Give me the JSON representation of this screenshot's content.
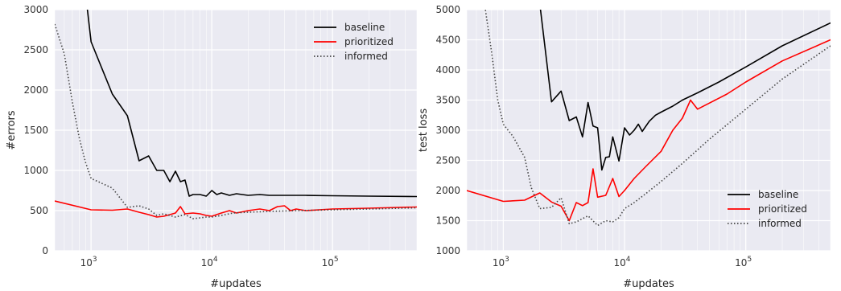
{
  "chart_data": [
    {
      "type": "line",
      "title": "",
      "xlabel": "#updates",
      "ylabel": "#errors",
      "xscale": "log",
      "xlim": [
        500,
        500000
      ],
      "ylim": [
        0,
        3000
      ],
      "xticks": [
        1000,
        10000,
        100000
      ],
      "xtick_labels": [
        {
          "base": "10",
          "exp": "3"
        },
        {
          "base": "10",
          "exp": "4"
        },
        {
          "base": "10",
          "exp": "5"
        }
      ],
      "yticks": [
        0,
        500,
        1000,
        1500,
        2000,
        2500,
        3000
      ],
      "ytick_labels": [
        "0",
        "500",
        "1000",
        "1500",
        "2000",
        "2500",
        "3000"
      ],
      "grid": true,
      "legend_position": "top-right",
      "series": [
        {
          "name": "baseline",
          "color": "#000000",
          "style": "solid",
          "points": [
            [
              900,
              3200
            ],
            [
              1000,
              2600
            ],
            [
              1500,
              1950
            ],
            [
              2000,
              1680
            ],
            [
              2500,
              1120
            ],
            [
              3000,
              1180
            ],
            [
              3500,
              1000
            ],
            [
              4000,
              1000
            ],
            [
              4500,
              860
            ],
            [
              5000,
              990
            ],
            [
              5500,
              860
            ],
            [
              6000,
              880
            ],
            [
              6500,
              680
            ],
            [
              7000,
              700
            ],
            [
              8000,
              700
            ],
            [
              9000,
              680
            ],
            [
              10000,
              750
            ],
            [
              11000,
              700
            ],
            [
              12000,
              720
            ],
            [
              14000,
              690
            ],
            [
              16000,
              710
            ],
            [
              20000,
              690
            ],
            [
              25000,
              700
            ],
            [
              30000,
              690
            ],
            [
              40000,
              690
            ],
            [
              60000,
              690
            ],
            [
              100000,
              685
            ],
            [
              200000,
              680
            ],
            [
              500000,
              675
            ]
          ]
        },
        {
          "name": "prioritized",
          "color": "#ff0000",
          "style": "solid",
          "points": [
            [
              500,
              620
            ],
            [
              1000,
              510
            ],
            [
              1500,
              505
            ],
            [
              2000,
              520
            ],
            [
              2500,
              480
            ],
            [
              3000,
              450
            ],
            [
              3500,
              420
            ],
            [
              4000,
              430
            ],
            [
              4500,
              450
            ],
            [
              5000,
              470
            ],
            [
              5500,
              550
            ],
            [
              6000,
              460
            ],
            [
              7000,
              470
            ],
            [
              8000,
              460
            ],
            [
              9000,
              440
            ],
            [
              10000,
              430
            ],
            [
              12000,
              470
            ],
            [
              14000,
              500
            ],
            [
              16000,
              470
            ],
            [
              20000,
              500
            ],
            [
              25000,
              520
            ],
            [
              30000,
              500
            ],
            [
              35000,
              550
            ],
            [
              40000,
              560
            ],
            [
              45000,
              500
            ],
            [
              50000,
              520
            ],
            [
              60000,
              500
            ],
            [
              100000,
              520
            ],
            [
              200000,
              530
            ],
            [
              500000,
              545
            ]
          ]
        },
        {
          "name": "informed",
          "color": "#444444",
          "style": "dotted",
          "points": [
            [
              500,
              2820
            ],
            [
              600,
              2450
            ],
            [
              700,
              1850
            ],
            [
              800,
              1400
            ],
            [
              900,
              1100
            ],
            [
              1000,
              900
            ],
            [
              1500,
              780
            ],
            [
              2000,
              540
            ],
            [
              2500,
              560
            ],
            [
              3000,
              520
            ],
            [
              3500,
              440
            ],
            [
              4000,
              460
            ],
            [
              5000,
              420
            ],
            [
              6000,
              450
            ],
            [
              7000,
              400
            ],
            [
              8000,
              410
            ],
            [
              9000,
              420
            ],
            [
              10000,
              420
            ],
            [
              12000,
              440
            ],
            [
              15000,
              470
            ],
            [
              20000,
              480
            ],
            [
              30000,
              490
            ],
            [
              50000,
              500
            ],
            [
              100000,
              510
            ],
            [
              200000,
              520
            ],
            [
              500000,
              535
            ]
          ]
        }
      ]
    },
    {
      "type": "line",
      "title": "",
      "xlabel": "#updates",
      "ylabel": "test loss",
      "xscale": "log",
      "xlim": [
        500,
        500000
      ],
      "ylim": [
        1000,
        5000
      ],
      "xticks": [
        1000,
        10000,
        100000
      ],
      "xtick_labels": [
        {
          "base": "10",
          "exp": "3"
        },
        {
          "base": "10",
          "exp": "4"
        },
        {
          "base": "10",
          "exp": "5"
        }
      ],
      "yticks": [
        1000,
        1500,
        2000,
        2500,
        3000,
        3500,
        4000,
        4500,
        5000
      ],
      "ytick_labels": [
        "1000",
        "1500",
        "2000",
        "2500",
        "3000",
        "3500",
        "4000",
        "4500",
        "5000"
      ],
      "grid": true,
      "legend_position": "bottom-right",
      "series": [
        {
          "name": "baseline",
          "color": "#000000",
          "style": "solid",
          "points": [
            [
              2000,
              5100
            ],
            [
              2500,
              3470
            ],
            [
              3000,
              3650
            ],
            [
              3500,
              3160
            ],
            [
              4000,
              3220
            ],
            [
              4500,
              2890
            ],
            [
              5000,
              3460
            ],
            [
              5500,
              3070
            ],
            [
              6000,
              3040
            ],
            [
              6500,
              2340
            ],
            [
              7000,
              2550
            ],
            [
              7500,
              2560
            ],
            [
              8000,
              2890
            ],
            [
              9000,
              2490
            ],
            [
              10000,
              3040
            ],
            [
              11000,
              2920
            ],
            [
              12000,
              3000
            ],
            [
              13000,
              3100
            ],
            [
              14000,
              2980
            ],
            [
              16000,
              3150
            ],
            [
              18000,
              3250
            ],
            [
              20000,
              3300
            ],
            [
              25000,
              3400
            ],
            [
              30000,
              3500
            ],
            [
              40000,
              3620
            ],
            [
              60000,
              3800
            ],
            [
              100000,
              4050
            ],
            [
              200000,
              4400
            ],
            [
              500000,
              4780
            ]
          ]
        },
        {
          "name": "prioritized",
          "color": "#ff0000",
          "style": "solid",
          "points": [
            [
              500,
              2000
            ],
            [
              1000,
              1820
            ],
            [
              1500,
              1840
            ],
            [
              2000,
              1960
            ],
            [
              2500,
              1810
            ],
            [
              3000,
              1740
            ],
            [
              3500,
              1500
            ],
            [
              4000,
              1800
            ],
            [
              4500,
              1750
            ],
            [
              5000,
              1800
            ],
            [
              5500,
              2360
            ],
            [
              6000,
              1890
            ],
            [
              7000,
              1920
            ],
            [
              8000,
              2200
            ],
            [
              9000,
              1900
            ],
            [
              10000,
              2000
            ],
            [
              12000,
              2200
            ],
            [
              15000,
              2400
            ],
            [
              20000,
              2650
            ],
            [
              25000,
              3000
            ],
            [
              30000,
              3200
            ],
            [
              35000,
              3500
            ],
            [
              40000,
              3350
            ],
            [
              50000,
              3450
            ],
            [
              70000,
              3600
            ],
            [
              100000,
              3800
            ],
            [
              200000,
              4150
            ],
            [
              500000,
              4500
            ]
          ]
        },
        {
          "name": "informed",
          "color": "#444444",
          "style": "dotted",
          "points": [
            [
              700,
              5100
            ],
            [
              800,
              4300
            ],
            [
              900,
              3500
            ],
            [
              1000,
              3100
            ],
            [
              1200,
              2900
            ],
            [
              1500,
              2550
            ],
            [
              1700,
              2050
            ],
            [
              2000,
              1700
            ],
            [
              2500,
              1720
            ],
            [
              3000,
              1880
            ],
            [
              3500,
              1450
            ],
            [
              4000,
              1480
            ],
            [
              5000,
              1580
            ],
            [
              6000,
              1420
            ],
            [
              7000,
              1500
            ],
            [
              8000,
              1480
            ],
            [
              9000,
              1550
            ],
            [
              10000,
              1700
            ],
            [
              12000,
              1800
            ],
            [
              15000,
              1950
            ],
            [
              20000,
              2150
            ],
            [
              30000,
              2450
            ],
            [
              50000,
              2850
            ],
            [
              100000,
              3350
            ],
            [
              200000,
              3850
            ],
            [
              500000,
              4400
            ]
          ]
        }
      ]
    }
  ]
}
